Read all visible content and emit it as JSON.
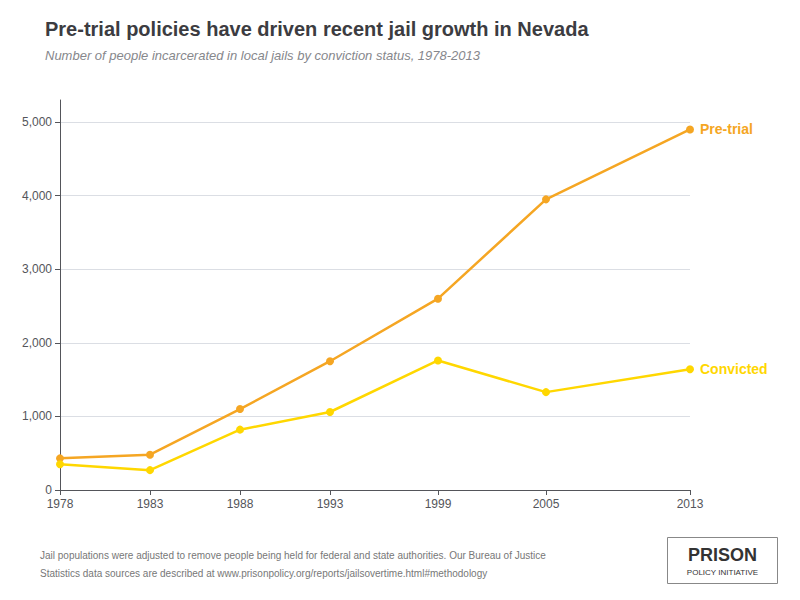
{
  "chart_data": {
    "type": "line",
    "title": "Pre-trial policies have driven recent jail growth in Nevada",
    "subtitle": "Number of people incarcerated in local jails by conviction status, 1978-2013",
    "x": [
      1978,
      1983,
      1988,
      1993,
      1999,
      2005,
      2013
    ],
    "series": [
      {
        "name": "Pre-trial",
        "color": "#F5A623",
        "values": [
          430,
          480,
          1100,
          1750,
          2600,
          3950,
          4900
        ]
      },
      {
        "name": "Convicted",
        "color": "#FFD700",
        "values": [
          350,
          270,
          820,
          1060,
          1760,
          1330,
          1640
        ]
      }
    ],
    "xlim": [
      1978,
      2013
    ],
    "xticks": [
      1978,
      1983,
      1988,
      1993,
      1999,
      2005,
      2013
    ],
    "ylim": [
      0,
      5300
    ],
    "yticks": [
      0,
      {
        "value": 1000,
        "label": "1,000"
      },
      {
        "value": 2000,
        "label": "2,000"
      },
      {
        "value": 3000,
        "label": "3,000"
      },
      {
        "value": 4000,
        "label": "4,000"
      },
      {
        "value": 5000,
        "label": "5,000"
      }
    ],
    "grid": true,
    "marker": "circle",
    "footnote": [
      "Jail populations were adjusted to remove people being held for federal and state authorities. Our Bureau of Justice",
      "Statistics data sources are described at www.prisonpolicy.org/reports/jailsovertime.html#methodology"
    ],
    "annotations": [
      "PRISON",
      "POLICY INITIATIVE"
    ]
  }
}
